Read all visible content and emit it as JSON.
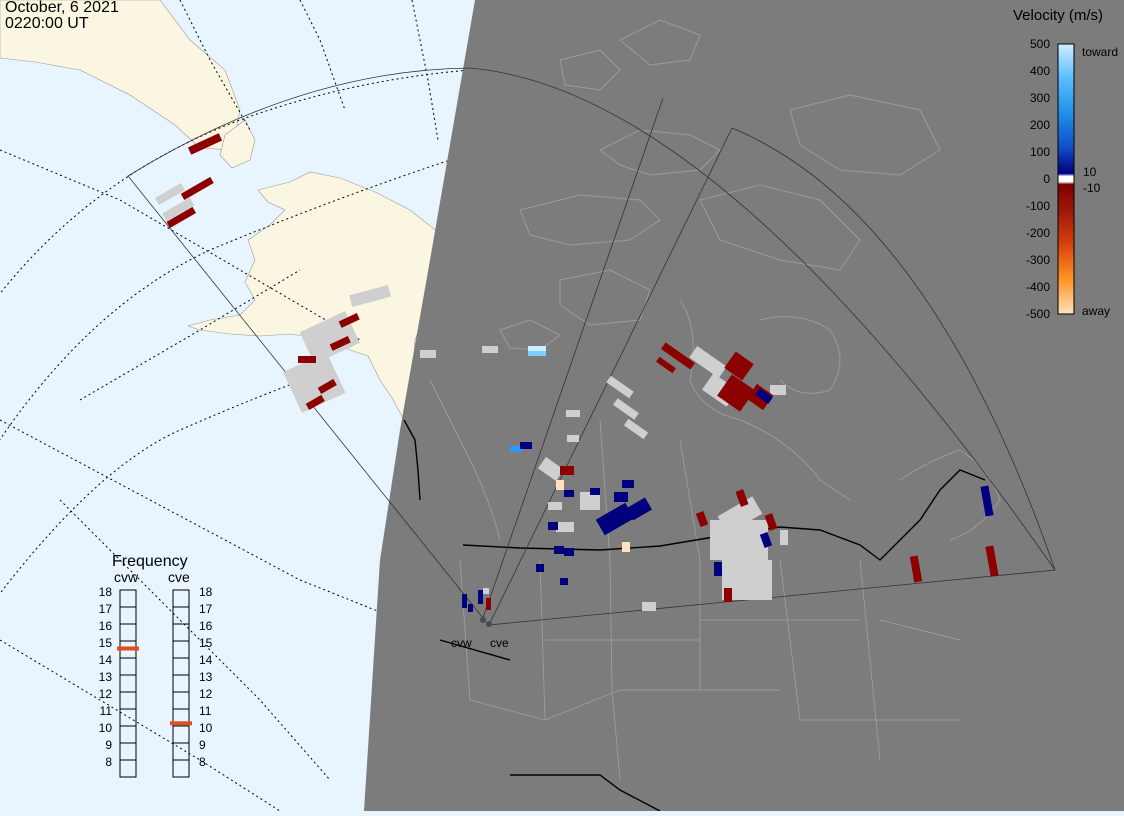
{
  "header": {
    "date": "October, 6 2021",
    "time": "0220:00 UT"
  },
  "colorbar": {
    "title": "Velocity (m/s)",
    "ticks": [
      "500",
      "400",
      "300",
      "200",
      "100",
      "0",
      "-100",
      "-200",
      "-300",
      "-400",
      "-500"
    ],
    "label_toward": "toward",
    "label_away": "away",
    "label_pos": "10",
    "label_neg": "-10"
  },
  "frequency": {
    "title": "Frequency",
    "radar_left": "cvw",
    "radar_right": "cve",
    "ticks": [
      "18",
      "17",
      "16",
      "15",
      "14",
      "13",
      "12",
      "11",
      "10",
      "9",
      "8"
    ],
    "cvw_value": 15,
    "cve_value": 10.6
  },
  "radars": {
    "west_label": "cvw",
    "east_label": "cve"
  },
  "colors": {
    "ocean": "#e8f5ff",
    "land": "#fbf6e1",
    "night": "#7c7c7c",
    "ground_scatter": "#cfcfcf",
    "away_dark": "#8b0000",
    "toward_dark": "#00007f",
    "freq_marker": "#e0501e"
  }
}
